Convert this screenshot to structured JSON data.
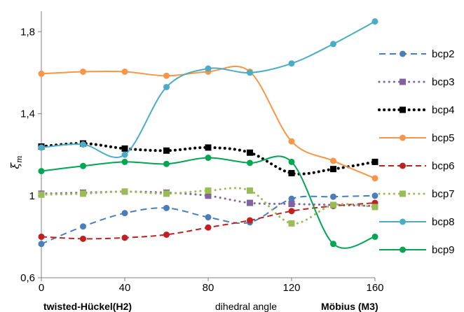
{
  "chart_data": {
    "type": "line",
    "xlabel": "dihedral angle",
    "x_left_label": "twisted-Hückel(H2)",
    "x_right_label": "Möbius (M3)",
    "ylabel_main": "ξ",
    "ylabel_sub": "m",
    "xlim": [
      0,
      160
    ],
    "ylim": [
      0.6,
      1.9
    ],
    "x_ticks": [
      0,
      40,
      80,
      120,
      160
    ],
    "x_tick_labels": [
      "0",
      "40",
      "80",
      "120",
      "160"
    ],
    "y_ticks": [
      0.6,
      1.0,
      1.4,
      1.8
    ],
    "y_tick_labels": [
      "0,6",
      "1",
      "1,4",
      "1,8"
    ],
    "grid": false,
    "legend_position": "right",
    "x": [
      0,
      20,
      40,
      60,
      80,
      100,
      120,
      140,
      160
    ],
    "series": [
      {
        "name": "bcp2",
        "color": "#4a7ebb",
        "dash": "long-dash",
        "marker": "circle",
        "values": [
          0.765,
          0.85,
          0.915,
          0.94,
          0.895,
          0.87,
          0.985,
          0.995,
          1.0
        ]
      },
      {
        "name": "bcp3",
        "color": "#8064a2",
        "dash": "dot",
        "marker": "square",
        "values": [
          1.01,
          1.015,
          1.02,
          1.015,
          1.0,
          0.965,
          0.96,
          0.955,
          0.95
        ]
      },
      {
        "name": "bcp4",
        "color": "#000000",
        "dash": "dot",
        "marker": "square",
        "values": [
          1.24,
          1.255,
          1.23,
          1.22,
          1.235,
          1.21,
          1.11,
          1.13,
          1.165
        ]
      },
      {
        "name": "bcp5",
        "color": "#f79646",
        "dash": "solid",
        "marker": "circle",
        "values": [
          1.595,
          1.605,
          1.605,
          1.585,
          1.605,
          1.605,
          1.265,
          1.17,
          1.085
        ]
      },
      {
        "name": "bcp6",
        "color": "#c0201f",
        "dash": "dash",
        "marker": "circle",
        "values": [
          0.8,
          0.79,
          0.795,
          0.81,
          0.845,
          0.88,
          0.925,
          0.95,
          0.965
        ]
      },
      {
        "name": "bcp7",
        "color": "#9bbb59",
        "dash": "dot",
        "marker": "square",
        "values": [
          1.005,
          1.01,
          1.02,
          1.01,
          1.025,
          1.025,
          0.865,
          0.955,
          0.945
        ]
      },
      {
        "name": "bcp8",
        "color": "#4bacc6",
        "dash": "solid",
        "marker": "circle",
        "values": [
          1.235,
          1.25,
          1.2,
          1.53,
          1.62,
          1.6,
          1.645,
          1.74,
          1.85
        ]
      },
      {
        "name": "bcp9",
        "color": "#00a651",
        "dash": "solid",
        "marker": "circle",
        "values": [
          1.12,
          1.145,
          1.165,
          1.155,
          1.185,
          1.16,
          1.165,
          0.765,
          0.8
        ]
      }
    ]
  }
}
